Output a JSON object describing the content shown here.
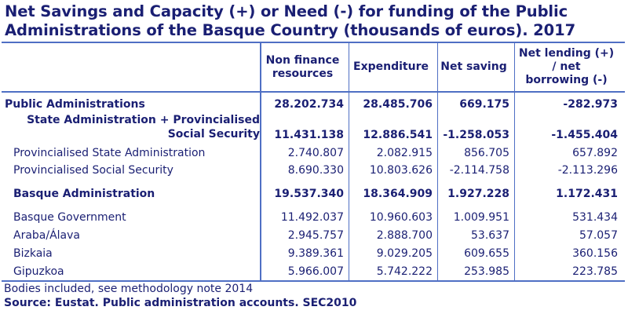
{
  "title": {
    "line1": "Net Savings and Capacity (+) or Need (-) for funding of the Public",
    "line2": "Administrations of the Basque Country (thousands of euros). 2017"
  },
  "table": {
    "columns": [
      {
        "line1": "Non finance",
        "line2": "resources",
        "line3": ""
      },
      {
        "line1": "Expenditure",
        "line2": "",
        "line3": ""
      },
      {
        "line1": "Net saving",
        "line2": "",
        "line3": ""
      },
      {
        "line1": "Net lending (+)",
        "line2": "/ net",
        "line3": "borrowing (-)"
      }
    ],
    "rows": [
      {
        "label": "Public Administrations",
        "label2": "",
        "values": [
          "28.202.734",
          "28.485.706",
          "669.175",
          "-282.973"
        ],
        "bold": true
      },
      {
        "label": "State Administration + Provincialised",
        "label2": "Social Security",
        "values": [
          "11.431.138",
          "12.886.541",
          "-1.258.053",
          "-1.455.404"
        ],
        "bold": true
      },
      {
        "label": "Provincialised State Administration",
        "label2": "",
        "values": [
          "2.740.807",
          "2.082.915",
          "856.705",
          "657.892"
        ],
        "bold": false
      },
      {
        "label": "Provincialised Social Security",
        "label2": "",
        "values": [
          "8.690.330",
          "10.803.626",
          "-2.114.758",
          "-2.113.296"
        ],
        "bold": false
      },
      {
        "label": "Basque Administration",
        "label2": "",
        "values": [
          "19.537.340",
          "18.364.909",
          "1.927.228",
          "1.172.431"
        ],
        "bold": true
      },
      {
        "label": "Basque Government",
        "label2": "",
        "values": [
          "11.492.037",
          "10.960.603",
          "1.009.951",
          "531.434"
        ],
        "bold": false
      },
      {
        "label": "Araba/Álava",
        "label2": "",
        "values": [
          "2.945.757",
          "2.888.700",
          "53.637",
          "57.057"
        ],
        "bold": false
      },
      {
        "label": "Bizkaia",
        "label2": "",
        "values": [
          "9.389.361",
          "9.029.205",
          "609.655",
          "360.156"
        ],
        "bold": false
      },
      {
        "label": "Gipuzkoa",
        "label2": "",
        "values": [
          "5.966.007",
          "5.742.222",
          "253.985",
          "223.785"
        ],
        "bold": false
      }
    ]
  },
  "footer": {
    "note": "Bodies included, see methodology note 2014",
    "source": "Source: Eustat. Public administration accounts. SEC2010"
  },
  "colors": {
    "text": "#1a1f73",
    "rule": "#4f6fc4",
    "background": "#ffffff"
  }
}
